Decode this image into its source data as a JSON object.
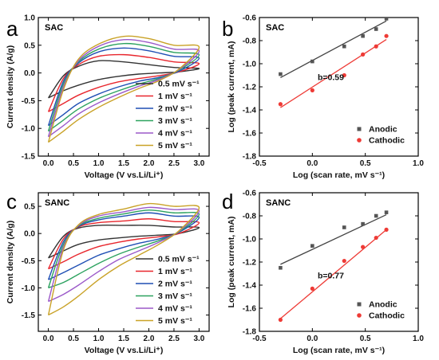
{
  "chart_data": [
    {
      "panel_label": "a",
      "type": "line",
      "title": "SAC",
      "xlabel": "Voltage (V vs.Li/Li⁺)",
      "ylabel": "Current density (A/g)",
      "xlim": [
        -0.2,
        3.2
      ],
      "ylim": [
        -1.5,
        1.0
      ],
      "xticks": [
        0.0,
        0.5,
        1.0,
        1.5,
        2.0,
        2.5,
        3.0
      ],
      "yticks": [
        -1.5,
        -1.0,
        -0.5,
        0.0,
        0.5,
        1.0
      ],
      "legend_position": "right",
      "series": [
        {
          "name": "0.5 mV s⁻¹",
          "color": "#333333",
          "x_forward": [
            0.0,
            0.3,
            0.6,
            1.0,
            1.5,
            2.0,
            2.5,
            3.0
          ],
          "y_forward": [
            -0.45,
            -0.05,
            0.12,
            0.22,
            0.2,
            0.15,
            0.1,
            0.08
          ],
          "x_reverse": [
            3.0,
            2.6,
            2.2,
            1.8,
            1.4,
            1.0,
            0.6,
            0.3,
            0.0
          ],
          "y_reverse": [
            0.08,
            0.02,
            0.0,
            -0.02,
            -0.06,
            -0.12,
            -0.22,
            -0.32,
            -0.45
          ]
        },
        {
          "name": "1 mV s⁻¹",
          "color": "#e8262d",
          "x_forward": [
            0.0,
            0.3,
            0.6,
            1.0,
            1.5,
            2.0,
            2.5,
            3.0
          ],
          "y_forward": [
            -0.7,
            -0.1,
            0.15,
            0.3,
            0.33,
            0.28,
            0.2,
            0.17
          ],
          "x_reverse": [
            3.0,
            2.6,
            2.2,
            1.8,
            1.4,
            1.0,
            0.6,
            0.3,
            0.0
          ],
          "y_reverse": [
            0.17,
            0.02,
            -0.05,
            -0.1,
            -0.16,
            -0.26,
            -0.4,
            -0.55,
            -0.7
          ]
        },
        {
          "name": "2 mV s⁻¹",
          "color": "#1f4fb4",
          "x_forward": [
            0.0,
            0.3,
            0.6,
            1.0,
            1.5,
            2.0,
            2.5,
            3.0
          ],
          "y_forward": [
            -0.95,
            -0.15,
            0.18,
            0.38,
            0.45,
            0.4,
            0.3,
            0.27
          ],
          "x_reverse": [
            3.0,
            2.6,
            2.2,
            1.8,
            1.4,
            1.0,
            0.6,
            0.3,
            0.0
          ],
          "y_reverse": [
            0.27,
            0.03,
            -0.08,
            -0.15,
            -0.25,
            -0.38,
            -0.55,
            -0.75,
            -0.95
          ]
        },
        {
          "name": "3 mV s⁻¹",
          "color": "#2ca25f",
          "x_forward": [
            0.0,
            0.3,
            0.6,
            1.0,
            1.5,
            2.0,
            2.5,
            3.0
          ],
          "y_forward": [
            -1.05,
            -0.2,
            0.2,
            0.43,
            0.53,
            0.48,
            0.37,
            0.33
          ],
          "x_reverse": [
            3.0,
            2.6,
            2.2,
            1.8,
            1.4,
            1.0,
            0.6,
            0.3,
            0.0
          ],
          "y_reverse": [
            0.33,
            0.05,
            -0.1,
            -0.2,
            -0.32,
            -0.46,
            -0.65,
            -0.85,
            -1.05
          ]
        },
        {
          "name": "4 mV s⁻¹",
          "color": "#9b59c9",
          "x_forward": [
            0.0,
            0.3,
            0.6,
            1.0,
            1.5,
            2.0,
            2.5,
            3.0
          ],
          "y_forward": [
            -1.15,
            -0.25,
            0.22,
            0.48,
            0.6,
            0.55,
            0.43,
            0.4
          ],
          "x_reverse": [
            3.0,
            2.6,
            2.2,
            1.8,
            1.4,
            1.0,
            0.6,
            0.3,
            0.0
          ],
          "y_reverse": [
            0.4,
            0.06,
            -0.12,
            -0.24,
            -0.38,
            -0.54,
            -0.74,
            -0.95,
            -1.15
          ]
        },
        {
          "name": "5 mV s⁻¹",
          "color": "#c9a227",
          "x_forward": [
            0.0,
            0.3,
            0.6,
            1.0,
            1.5,
            2.0,
            2.5,
            3.0
          ],
          "y_forward": [
            -1.25,
            -0.3,
            0.25,
            0.52,
            0.66,
            0.62,
            0.5,
            0.47
          ],
          "x_reverse": [
            3.0,
            2.6,
            2.2,
            1.8,
            1.4,
            1.0,
            0.6,
            0.3,
            0.0
          ],
          "y_reverse": [
            0.47,
            0.07,
            -0.14,
            -0.28,
            -0.44,
            -0.62,
            -0.84,
            -1.05,
            -1.25
          ]
        }
      ]
    },
    {
      "panel_label": "b",
      "type": "scatter",
      "title": "SAC",
      "xlabel": "Log (scan rate, mV s⁻¹)",
      "ylabel": "Log (peak current, mA)",
      "xlim": [
        -0.5,
        1.0
      ],
      "ylim": [
        -1.8,
        -0.6
      ],
      "xticks": [
        -0.5,
        0.0,
        0.5,
        1.0
      ],
      "yticks": [
        -1.8,
        -1.6,
        -1.4,
        -1.2,
        -1.0,
        -0.8,
        -0.6
      ],
      "legend_position": "bottom-right",
      "annotation": {
        "text": "b=0.59",
        "x": 0.05,
        "y": -1.14
      },
      "series": [
        {
          "name": "Anodic",
          "color": "#555555",
          "marker": "square",
          "x": [
            -0.301,
            0.0,
            0.301,
            0.477,
            0.602,
            0.699
          ],
          "y": [
            -1.09,
            -0.98,
            -0.85,
            -0.76,
            -0.7,
            -0.61
          ],
          "fit": {
            "x": [
              -0.301,
              0.699
            ],
            "y": [
              -1.12,
              -0.63
            ]
          }
        },
        {
          "name": "Cathodic",
          "color": "#ee3b36",
          "marker": "circle",
          "x": [
            -0.301,
            0.0,
            0.301,
            0.477,
            0.602,
            0.699
          ],
          "y": [
            -1.35,
            -1.23,
            -1.1,
            -0.92,
            -0.85,
            -0.76
          ],
          "fit": {
            "x": [
              -0.301,
              0.699
            ],
            "y": [
              -1.38,
              -0.79
            ]
          }
        }
      ]
    },
    {
      "panel_label": "c",
      "type": "line",
      "title": "SANC",
      "xlabel": "Voltage (V vs.Li/Li⁺)",
      "ylabel": "Current density (A/g)",
      "xlim": [
        -0.2,
        3.2
      ],
      "ylim": [
        -1.8,
        0.75
      ],
      "xticks": [
        0.0,
        0.5,
        1.0,
        1.5,
        2.0,
        2.5,
        3.0
      ],
      "yticks": [
        -1.5,
        -1.0,
        -0.5,
        0.0,
        0.5
      ],
      "legend_position": "right",
      "series": [
        {
          "name": "0.5 mV s⁻¹",
          "color": "#333333",
          "x_forward": [
            0.0,
            0.3,
            0.6,
            1.0,
            1.5,
            2.0,
            2.5,
            3.0
          ],
          "y_forward": [
            -0.45,
            -0.05,
            0.1,
            0.15,
            0.15,
            0.15,
            0.12,
            0.11
          ],
          "x_reverse": [
            3.0,
            2.6,
            2.2,
            1.8,
            1.4,
            1.0,
            0.6,
            0.3,
            0.0
          ],
          "y_reverse": [
            0.11,
            0.0,
            -0.03,
            -0.05,
            -0.08,
            -0.12,
            -0.2,
            -0.32,
            -0.45
          ]
        },
        {
          "name": "1 mV s⁻¹",
          "color": "#e8262d",
          "x_forward": [
            0.0,
            0.3,
            0.6,
            1.0,
            1.5,
            2.0,
            2.5,
            3.0
          ],
          "y_forward": [
            -0.65,
            -0.1,
            0.12,
            0.2,
            0.23,
            0.27,
            0.22,
            0.2
          ],
          "x_reverse": [
            3.0,
            2.6,
            2.2,
            1.8,
            1.4,
            1.0,
            0.6,
            0.3,
            0.0
          ],
          "y_reverse": [
            0.2,
            0.0,
            -0.06,
            -0.1,
            -0.16,
            -0.24,
            -0.38,
            -0.52,
            -0.65
          ]
        },
        {
          "name": "2 mV s⁻¹",
          "color": "#1f4fb4",
          "x_forward": [
            0.0,
            0.3,
            0.6,
            1.0,
            1.5,
            2.0,
            2.5,
            3.0
          ],
          "y_forward": [
            -0.85,
            -0.15,
            0.13,
            0.25,
            0.32,
            0.38,
            0.32,
            0.3
          ],
          "x_reverse": [
            3.0,
            2.6,
            2.2,
            1.8,
            1.4,
            1.0,
            0.6,
            0.3,
            0.0
          ],
          "y_reverse": [
            0.3,
            0.02,
            -0.1,
            -0.18,
            -0.28,
            -0.4,
            -0.58,
            -0.72,
            -0.85
          ]
        },
        {
          "name": "3 mV s⁻¹",
          "color": "#2ca25f",
          "x_forward": [
            0.0,
            0.3,
            0.6,
            1.0,
            1.5,
            2.0,
            2.5,
            3.0
          ],
          "y_forward": [
            -1.0,
            -0.2,
            0.14,
            0.28,
            0.36,
            0.43,
            0.38,
            0.36
          ],
          "x_reverse": [
            3.0,
            2.6,
            2.2,
            1.8,
            1.4,
            1.0,
            0.6,
            0.3,
            0.0
          ],
          "y_reverse": [
            0.36,
            0.03,
            -0.13,
            -0.25,
            -0.38,
            -0.55,
            -0.75,
            -0.9,
            -1.0
          ]
        },
        {
          "name": "4 mV s⁻¹",
          "color": "#9b59c9",
          "x_forward": [
            0.0,
            0.3,
            0.6,
            1.0,
            1.5,
            2.0,
            2.5,
            3.0
          ],
          "y_forward": [
            -1.25,
            -0.25,
            0.15,
            0.32,
            0.4,
            0.48,
            0.44,
            0.42
          ],
          "x_reverse": [
            3.0,
            2.6,
            2.2,
            1.8,
            1.4,
            1.0,
            0.6,
            0.3,
            0.0
          ],
          "y_reverse": [
            0.42,
            0.04,
            -0.16,
            -0.32,
            -0.48,
            -0.7,
            -0.95,
            -1.12,
            -1.25
          ]
        },
        {
          "name": "5 mV s⁻¹",
          "color": "#c9a227",
          "x_forward": [
            0.0,
            0.3,
            0.6,
            1.0,
            1.5,
            2.0,
            2.5,
            3.0
          ],
          "y_forward": [
            -1.5,
            -0.3,
            0.16,
            0.35,
            0.45,
            0.55,
            0.5,
            0.48
          ],
          "x_reverse": [
            3.0,
            2.6,
            2.2,
            1.8,
            1.4,
            1.0,
            0.6,
            0.3,
            0.0
          ],
          "y_reverse": [
            0.48,
            0.05,
            -0.2,
            -0.4,
            -0.6,
            -0.85,
            -1.15,
            -1.35,
            -1.5
          ]
        }
      ]
    },
    {
      "panel_label": "d",
      "type": "scatter",
      "title": "SANC",
      "xlabel": "Log (scan rate, mV s⁻¹)",
      "ylabel": "Log (peak current, mA)",
      "xlim": [
        -0.5,
        1.0
      ],
      "ylim": [
        -1.8,
        -0.6
      ],
      "xticks": [
        -0.5,
        0.0,
        0.5,
        1.0
      ],
      "yticks": [
        -1.8,
        -1.6,
        -1.4,
        -1.2,
        -1.0,
        -0.8,
        -0.6
      ],
      "legend_position": "bottom-right",
      "annotation": {
        "text": "b=0.77",
        "x": 0.05,
        "y": -1.34
      },
      "series": [
        {
          "name": "Anodic",
          "color": "#555555",
          "marker": "square",
          "x": [
            -0.301,
            0.0,
            0.301,
            0.477,
            0.602,
            0.699
          ],
          "y": [
            -1.25,
            -1.06,
            -0.9,
            -0.87,
            -0.8,
            -0.77
          ],
          "fit": {
            "x": [
              -0.301,
              0.699
            ],
            "y": [
              -1.22,
              -0.79
            ]
          }
        },
        {
          "name": "Cathodic",
          "color": "#ee3b36",
          "marker": "circle",
          "x": [
            -0.301,
            0.0,
            0.301,
            0.477,
            0.602,
            0.699
          ],
          "y": [
            -1.7,
            -1.43,
            -1.19,
            -1.07,
            -0.99,
            -0.92
          ],
          "fit": {
            "x": [
              -0.301,
              0.699
            ],
            "y": [
              -1.69,
              -0.92
            ]
          }
        }
      ]
    }
  ]
}
